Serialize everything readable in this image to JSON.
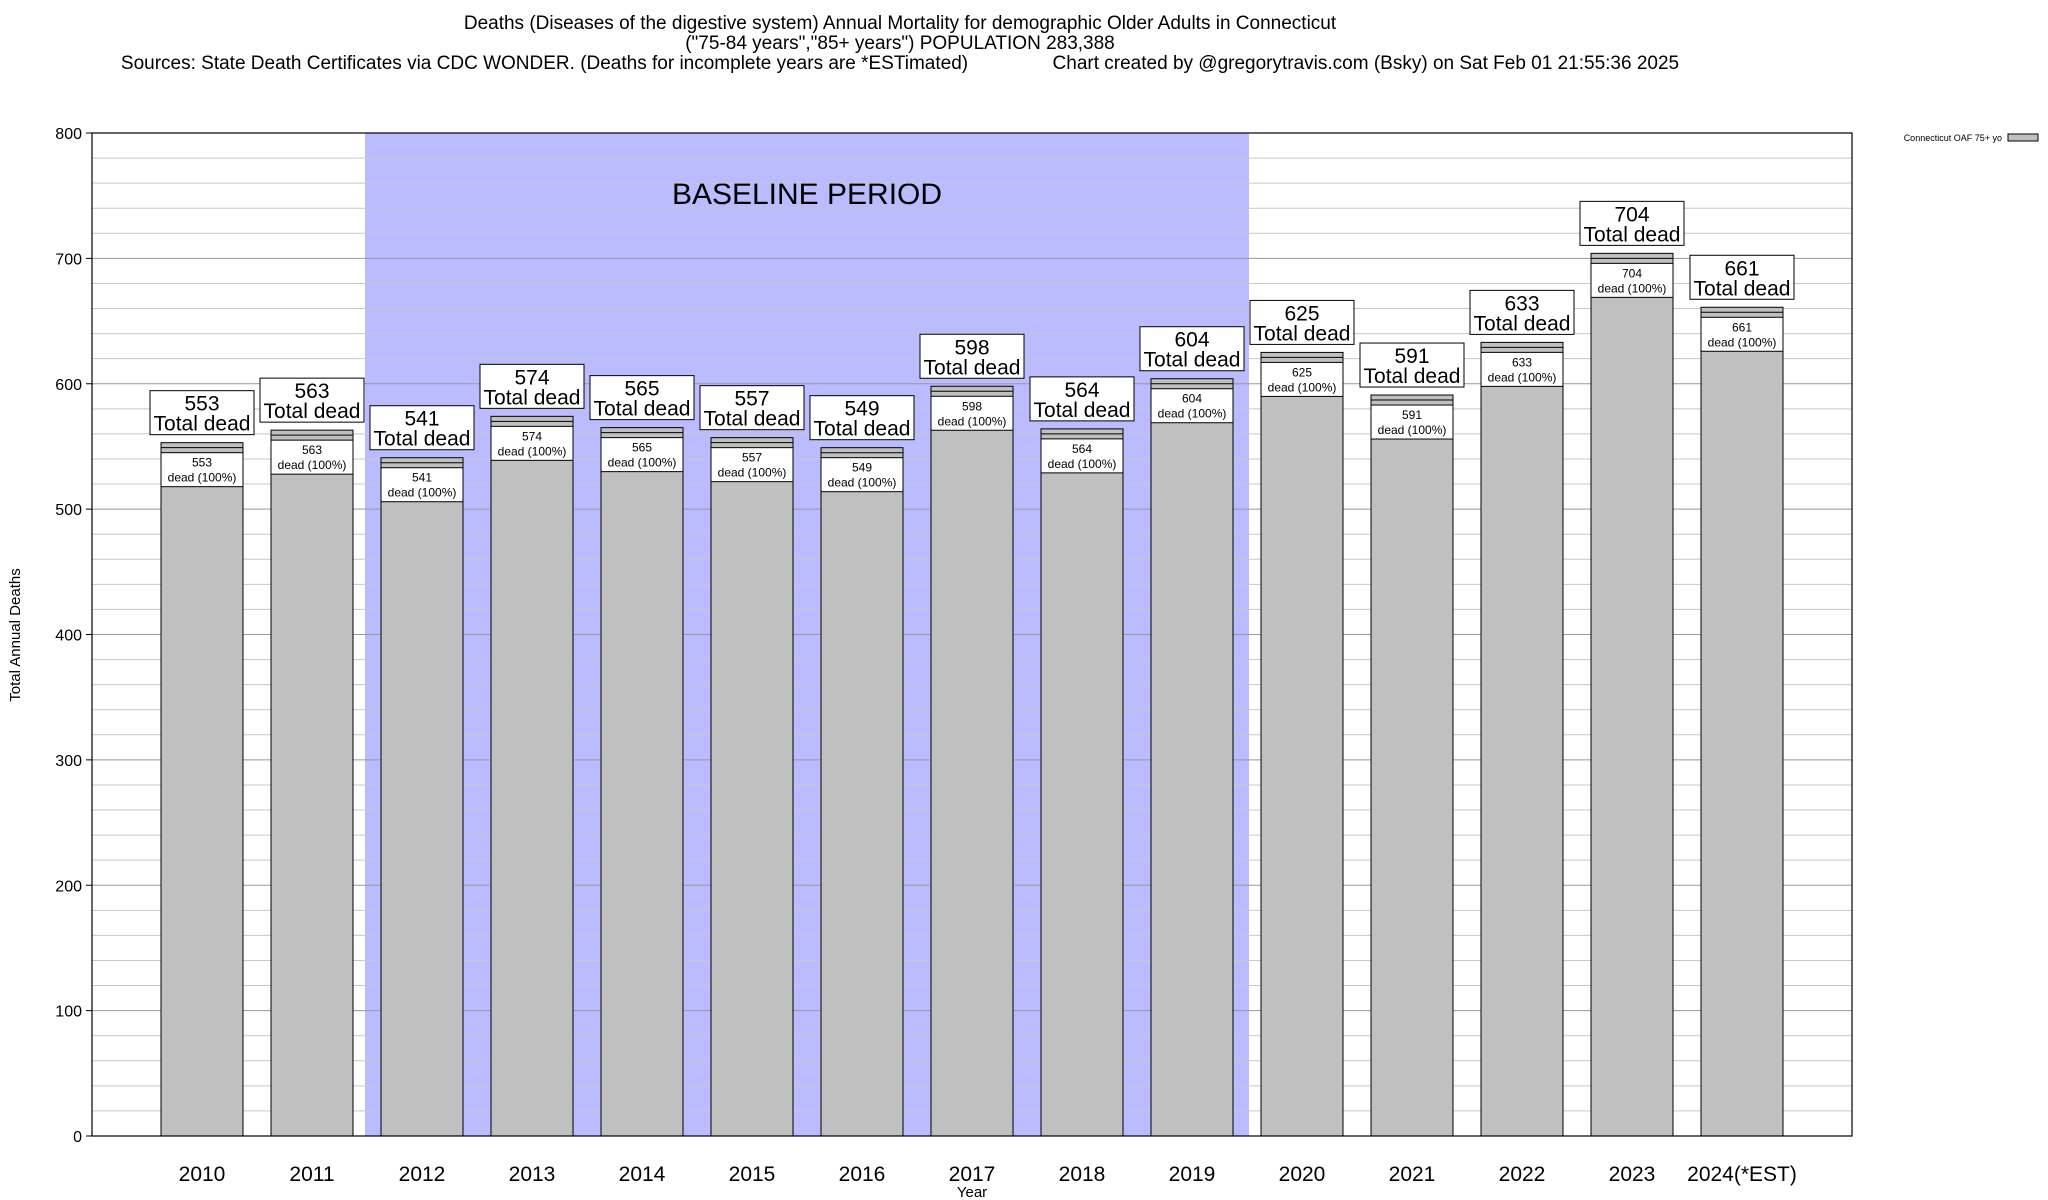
{
  "header": {
    "title_line1": "Deaths (Diseases of the digestive system) Annual Mortality for demographic Older Adults in Connecticut",
    "title_line2": "(\"75-84 years\",\"85+ years\") POPULATION 283,388",
    "title_line3": "Sources: State Death Certificates via CDC WONDER. (Deaths for incomplete years are *ESTimated)                Chart created by @gregorytravis.com (Bsky) on Sat Feb 01 21:55:36 2025"
  },
  "chart_data": {
    "type": "bar",
    "title": "Deaths (Diseases of the digestive system) Annual Mortality for demographic Older Adults in Connecticut",
    "xlabel": "Year",
    "ylabel": "Total Annual Deaths",
    "ylim": [
      0,
      800
    ],
    "y_ticks": [
      0,
      100,
      200,
      300,
      400,
      500,
      600,
      700,
      800
    ],
    "y_minor_step": 20,
    "categories": [
      "2010",
      "2011",
      "2012",
      "2013",
      "2014",
      "2015",
      "2016",
      "2017",
      "2018",
      "2019",
      "2020",
      "2021",
      "2022",
      "2023",
      "2024(*EST)"
    ],
    "series": [
      {
        "name": "Connecticut OAF 75+ yo",
        "values": [
          553,
          563,
          541,
          574,
          565,
          557,
          549,
          598,
          564,
          604,
          625,
          591,
          633,
          704,
          661
        ],
        "color": "#c0c0c0"
      }
    ],
    "total_label_suffix": "Total dead",
    "inner_label_suffix": "dead (100%)",
    "baseline": {
      "label": "BASELINE PERIOD",
      "start": "2012",
      "end": "2019",
      "color": "#bbbbff"
    },
    "legend_position": "top-right",
    "grid": true
  }
}
